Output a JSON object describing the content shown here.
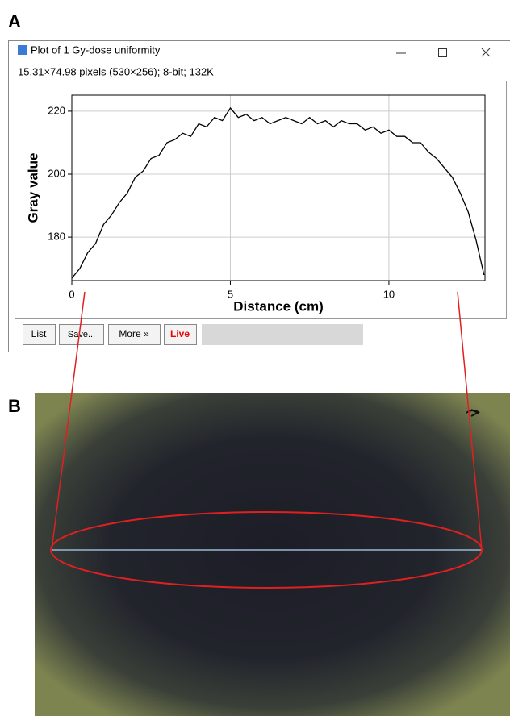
{
  "panel_labels": [
    "A",
    "B"
  ],
  "window": {
    "title": "Plot of 1 Gy-dose uniformity",
    "info": "15.31×74.98 pixels (530×256); 8-bit; 132K",
    "buttons": [
      "List",
      "Save...",
      "More »",
      "Live"
    ]
  },
  "chart_data": {
    "type": "line",
    "xlabel": "Distance (cm)",
    "ylabel": "Gray value",
    "x": [
      0,
      0.25,
      0.5,
      0.75,
      1,
      1.25,
      1.5,
      1.75,
      2,
      2.25,
      2.5,
      2.75,
      3,
      3.25,
      3.5,
      3.75,
      4,
      4.25,
      4.5,
      4.75,
      5,
      5.25,
      5.5,
      5.75,
      6,
      6.25,
      6.5,
      6.75,
      7,
      7.25,
      7.5,
      7.75,
      8,
      8.25,
      8.5,
      8.75,
      9,
      9.25,
      9.5,
      9.75,
      10,
      10.25,
      10.5,
      10.75,
      11,
      11.25,
      11.5,
      11.75,
      12,
      12.25,
      12.5,
      12.75,
      13
    ],
    "values": [
      167,
      170,
      175,
      178,
      184,
      187,
      191,
      194,
      199,
      201,
      205,
      206,
      210,
      211,
      213,
      212,
      216,
      215,
      218,
      217,
      221,
      218,
      219,
      217,
      218,
      216,
      217,
      218,
      217,
      216,
      218,
      216,
      217,
      215,
      217,
      216,
      216,
      214,
      215,
      213,
      214,
      212,
      212,
      210,
      210,
      207,
      205,
      202,
      199,
      194,
      188,
      179,
      168
    ],
    "color": "#000000",
    "xlim": [
      0,
      13.03
    ],
    "ylim": [
      166.2,
      225.1
    ],
    "xticks": [
      0,
      5,
      10
    ],
    "yticks": [
      180,
      200,
      220
    ],
    "grid": true
  }
}
